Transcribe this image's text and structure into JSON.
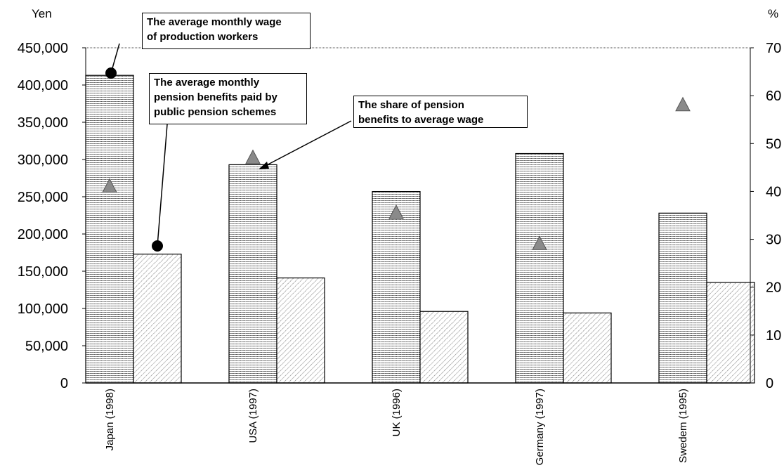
{
  "chart_data": {
    "type": "bar",
    "categories": [
      "Japan (1998)",
      "USA (1997)",
      "UK (1996)",
      "Germany (1997)",
      "Swedem (1995)"
    ],
    "series": [
      {
        "name": "The average monthly wage of production workers",
        "axis": "left",
        "values": [
          413000,
          293000,
          257000,
          308000,
          228000
        ]
      },
      {
        "name": "The average monthly pension benefits paid by public pension schemes",
        "axis": "left",
        "values": [
          173000,
          141000,
          96000,
          94000,
          135000
        ]
      },
      {
        "name": "The share of pension benefits to average wage",
        "axis": "right",
        "kind": "triangle-marker",
        "values": [
          41,
          47,
          35.5,
          29,
          58
        ]
      }
    ],
    "left_axis": {
      "unit": "Yen",
      "ylim": [
        0,
        450000
      ],
      "ticks": [
        "0",
        "50,000",
        "100,000",
        "150,000",
        "200,000",
        "250,000",
        "300,000",
        "350,000",
        "400,000",
        "450,000"
      ]
    },
    "right_axis": {
      "unit": "%",
      "ylim": [
        0,
        70
      ],
      "ticks": [
        "0",
        "10",
        "20",
        "30",
        "40",
        "50",
        "60",
        "70"
      ]
    },
    "annotations": {
      "wage": [
        "The average monthly wage",
        "of production workers"
      ],
      "pension": [
        "The average monthly",
        "pension benefits paid by",
        "public pension schemes"
      ],
      "share": [
        "The share of pension",
        "benefits to average wage"
      ]
    },
    "colors": {
      "axis": "#000000",
      "bar_fill": "#ffffff",
      "marker": "#8a8a8a"
    }
  }
}
